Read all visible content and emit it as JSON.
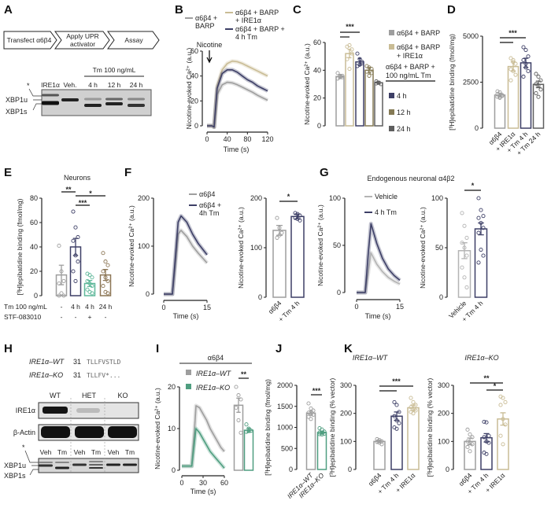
{
  "panel_labels": [
    "A",
    "B",
    "C",
    "D",
    "E",
    "F",
    "G",
    "H",
    "I",
    "J",
    "K"
  ],
  "colors": {
    "gray": "#9e9e9e",
    "tan": "#c9bc95",
    "navy": "#3d3f66",
    "olive": "#857a55",
    "dark": "#5e5e5e",
    "teal": "#5fb89a",
    "green": "#4f9e80",
    "brown": "#8c7655",
    "light": "#b4b4b4"
  },
  "panelA": {
    "flow": [
      [
        "Transfect α6β4"
      ],
      [
        "Apply UPR",
        "activator"
      ],
      [
        "Assay"
      ]
    ],
    "treatment": "Tm 100 ng/mL",
    "lanes": [
      "IRE1α",
      "Veh.",
      "4 h",
      "12 h",
      "24 h"
    ],
    "asterisk": "*",
    "bands": [
      "XBP1u",
      "XBP1s"
    ]
  },
  "panelH": {
    "sequences": [
      {
        "genotype": "IRE1α–WT",
        "position": "31",
        "sequence": "TLLFVSTLD"
      },
      {
        "genotype": "IRE1α–KO",
        "position": "31",
        "sequence": "TLLFV*..."
      }
    ],
    "genotypes": [
      "WT",
      "HET",
      "KO"
    ],
    "blots": [
      "IRE1α",
      "β-Actin"
    ],
    "treatments": [
      "Veh",
      "Tm",
      "Veh",
      "Tm",
      "Veh",
      "Tm"
    ],
    "asterisk": "*",
    "bands": [
      "XBP1u",
      "XBP1s"
    ]
  },
  "chart_data": [
    {
      "id": "B",
      "type": "line",
      "ylabel": "Nicotine-evoked Ca²⁺ (a.u.)",
      "xlabel": "Time (s)",
      "ylim": [
        0,
        60
      ],
      "xlim": [
        0,
        120
      ],
      "yticks": [
        0,
        20,
        40,
        60
      ],
      "xticks": [
        0,
        40,
        80,
        120
      ],
      "annotation": "Nicotine",
      "x": [
        0,
        10,
        14,
        20,
        30,
        40,
        50,
        60,
        70,
        80,
        90,
        100,
        110,
        120
      ],
      "series": [
        {
          "name": [
            "α6β4 +",
            "BARP"
          ],
          "color": "#9e9e9e",
          "y": [
            0,
            0,
            -1,
            25,
            33,
            35,
            34.5,
            33,
            31,
            29,
            27,
            24.5,
            22.5,
            20.5
          ]
        },
        {
          "name": [
            "α6β4 + BARP",
            "+ IRE1α"
          ],
          "color": "#c9bc95",
          "y": [
            0,
            0,
            -1,
            32,
            45,
            50,
            52,
            51.5,
            50,
            48,
            46,
            44,
            42,
            40
          ]
        },
        {
          "name": [
            "α6β4 + BARP +",
            "4 h Tm"
          ],
          "color": "#3d3f66",
          "y": [
            0,
            0,
            -1,
            30,
            42,
            45,
            45,
            43,
            40,
            37,
            35,
            32,
            30,
            28
          ]
        }
      ]
    },
    {
      "id": "C",
      "type": "bar",
      "ylabel": "Nicotine-evoked Ca²⁺ (a.u.)",
      "ylim": [
        0,
        60
      ],
      "yticks": [
        0,
        20,
        40,
        60
      ],
      "categories": [
        "α6β4 + BARP",
        "α6β4 + BARP + IRE1α",
        "4 h",
        "12 h",
        "24 h"
      ],
      "values": [
        35.5,
        52,
        46,
        40,
        31
      ],
      "sem": [
        1.5,
        3,
        2.5,
        2,
        1
      ],
      "points": [
        [
          38,
          36,
          35,
          34,
          35.5,
          36
        ],
        [
          57,
          58,
          55,
          48,
          41,
          52
        ],
        [
          52,
          48,
          45,
          43,
          44,
          46
        ],
        [
          43,
          42,
          41,
          39,
          36,
          38
        ],
        [
          32,
          31,
          30,
          30.5,
          31
        ]
      ],
      "colors": [
        "#9e9e9e",
        "#c9bc95",
        "#3d3f66",
        "#857a55",
        "#5e5e5e"
      ],
      "significance": [
        {
          "pair": [
            0,
            2
          ],
          "label": "***"
        },
        {
          "pair": [
            0,
            1
          ],
          "label": ""
        }
      ],
      "legend": [
        {
          "label": [
            "α6β4 + BARP"
          ],
          "color": "#9e9e9e"
        },
        {
          "label": [
            "α6β4 + BARP",
            "+ IRE1α"
          ],
          "color": "#c9bc95"
        },
        {
          "label": [
            "α6β4 + BARP +",
            "100 ng/mL Tm"
          ],
          "color": ""
        },
        {
          "label": [
            "4 h"
          ],
          "color": "#3d3f66"
        },
        {
          "label": [
            "12 h"
          ],
          "color": "#857a55"
        },
        {
          "label": [
            "24 h"
          ],
          "color": "#5e5e5e"
        }
      ]
    },
    {
      "id": "D",
      "type": "bar",
      "ylabel": "[³H]epibatidine binding (fmol/mg)",
      "ylim": [
        0,
        5000
      ],
      "yticks": [
        0,
        2500,
        5000
      ],
      "categories": [
        "α6β4",
        "+ IRE1α",
        "+ Tm 4 h",
        "+ Tm 24 h"
      ],
      "values": [
        1800,
        3350,
        3550,
        2380
      ],
      "sem": [
        100,
        250,
        250,
        180
      ],
      "points": [
        [
          2000,
          1950,
          1800,
          1700,
          1650,
          1750,
          1850,
          1700
        ],
        [
          3800,
          3700,
          3500,
          3200,
          3100,
          2900,
          2600,
          3600
        ],
        [
          4400,
          4250,
          3900,
          3700,
          3500,
          3100,
          2800,
          3300
        ],
        [
          2950,
          2800,
          2600,
          2400,
          2300,
          2100,
          1900,
          1700
        ]
      ],
      "colors": [
        "#9e9e9e",
        "#c9bc95",
        "#3d3f66",
        "#5e5e5e"
      ],
      "significance": [
        {
          "pair": [
            0,
            2
          ],
          "label": "***"
        },
        {
          "pair": [
            0,
            1
          ],
          "label": ""
        }
      ]
    },
    {
      "id": "E",
      "type": "bar",
      "title": "Neurons",
      "ylabel": "[³H]epibatidine binding (fmol/mg)",
      "ylim": [
        0,
        80
      ],
      "yticks": [
        0,
        20,
        40,
        60,
        80
      ],
      "values": [
        17,
        40,
        10,
        17
      ],
      "sem": [
        8,
        7,
        2.5,
        4.5
      ],
      "points": [
        [
          41,
          20,
          12,
          10,
          2,
          0,
          0
        ],
        [
          69,
          56,
          48,
          45,
          33,
          28,
          20,
          12
        ],
        [
          18,
          17,
          15,
          12,
          10,
          8,
          5,
          3,
          2
        ],
        [
          35,
          28,
          25,
          20,
          15,
          12,
          8,
          3,
          2
        ]
      ],
      "colors": [
        "#9e9e9e",
        "#3d3f66",
        "#5fb89a",
        "#8c7655"
      ],
      "rows": [
        {
          "label": "Tm 100 ng/mL",
          "values": [
            "-",
            "4 h",
            "4 h",
            "24 h"
          ]
        },
        {
          "label": "STF-083010",
          "values": [
            "-",
            "-",
            "+",
            "-"
          ]
        }
      ],
      "significance": [
        {
          "pair": [
            0,
            1
          ],
          "label": "**"
        },
        {
          "pair": [
            1,
            3
          ],
          "label": "*"
        },
        {
          "pair": [
            1,
            2
          ],
          "label": "***"
        }
      ]
    },
    {
      "id": "F-trace",
      "type": "line",
      "ylabel": "Nicotine-evoked Ca²⁺ (a.u.)",
      "xlabel": "Time (s)",
      "ylim": [
        0,
        200
      ],
      "xlim": [
        0,
        15
      ],
      "yticks": [
        0,
        100,
        200
      ],
      "xticks": [
        0,
        15
      ],
      "x": [
        0,
        2,
        3,
        4,
        5,
        6,
        8,
        10,
        12,
        15
      ],
      "series": [
        {
          "name": [
            "α6β4"
          ],
          "color": "#9e9e9e",
          "y": [
            0,
            0,
            0,
            60,
            125,
            133,
            120,
            100,
            85,
            65
          ]
        },
        {
          "name": [
            "α6β4 +",
            "4h Tm"
          ],
          "color": "#3d3f66",
          "y": [
            0,
            0,
            0,
            75,
            150,
            163,
            150,
            125,
            105,
            82
          ]
        }
      ]
    },
    {
      "id": "F-bar",
      "type": "bar",
      "ylabel": "Nicotine-evoked Ca²⁺ (a.u.)",
      "ylim": [
        0,
        200
      ],
      "yticks": [
        0,
        100,
        200
      ],
      "categories": [
        "α6β4",
        "+ Tm 4 h"
      ],
      "values": [
        135,
        163
      ],
      "sem": [
        10,
        5
      ],
      "points": [
        [
          160,
          140,
          130,
          120,
          125
        ],
        [
          170,
          168,
          165,
          160,
          158,
          155
        ]
      ],
      "colors": [
        "#9e9e9e",
        "#3d3f66"
      ],
      "significance": [
        {
          "pair": [
            0,
            1
          ],
          "label": "*"
        }
      ]
    },
    {
      "id": "G-trace",
      "type": "line",
      "title": "Endogenous neuronal α4β2",
      "ylabel": "Nicotine-evoked Ca²⁺ (a.u.)",
      "xlabel": "Time (s)",
      "ylim": [
        0,
        100
      ],
      "xlim": [
        0,
        15
      ],
      "yticks": [
        0,
        50,
        100
      ],
      "xticks": [
        0,
        15
      ],
      "x": [
        0,
        2,
        3,
        4,
        5,
        7,
        9,
        11,
        13,
        15
      ],
      "series": [
        {
          "name": [
            "Vehicle"
          ],
          "color": "#b4b4b4",
          "y": [
            0,
            0,
            0,
            20,
            42,
            30,
            22,
            16,
            12,
            9
          ]
        },
        {
          "name": [
            "4 h Tm"
          ],
          "color": "#3d3f66",
          "y": [
            0,
            0,
            0,
            40,
            73,
            52,
            36,
            25,
            18,
            13
          ]
        }
      ]
    },
    {
      "id": "G-bar",
      "type": "bar",
      "ylabel": "Nicotine-evoked Ca²⁺ (a.u.)",
      "ylim": [
        0,
        100
      ],
      "yticks": [
        0,
        50,
        100
      ],
      "categories": [
        "Vehicle",
        "+ Tm 4 h"
      ],
      "values": [
        47,
        69
      ],
      "sem": [
        8,
        6
      ],
      "points": [
        [
          85,
          72,
          60,
          55,
          50,
          42,
          30,
          20,
          10
        ],
        [
          100,
          88,
          82,
          80,
          75,
          70,
          65,
          48,
          42,
          35
        ]
      ],
      "colors": [
        "#b4b4b4",
        "#3d3f66"
      ],
      "significance": [
        {
          "pair": [
            0,
            1
          ],
          "label": "*"
        }
      ]
    },
    {
      "id": "I-trace",
      "type": "line",
      "title": "α6β4",
      "ylabel": "Nicotine-evoked Ca²⁺ (a.u.)",
      "xlabel": "Time (s)",
      "ylim": [
        0,
        20
      ],
      "xlim": [
        0,
        60
      ],
      "yticks": [
        0,
        10,
        20
      ],
      "xticks": [
        0,
        30,
        60
      ],
      "x": [
        0,
        10,
        14,
        18,
        20,
        25,
        30,
        35,
        40,
        45,
        50,
        55,
        60
      ],
      "series": [
        {
          "name": [
            "IRE1α–WT"
          ],
          "color": "#9e9e9e",
          "y": [
            1,
            1,
            1,
            10,
            15.5,
            15,
            13.5,
            12,
            10,
            8.5,
            7,
            5.5,
            4.5
          ]
        },
        {
          "name": [
            "IRE1α–KO"
          ],
          "color": "#4f9e80",
          "y": [
            1,
            1,
            1,
            7,
            10,
            9,
            7.5,
            6,
            4.5,
            3.5,
            2.5,
            1.5,
            0.5
          ]
        }
      ]
    },
    {
      "id": "I-bar",
      "type": "bar",
      "ylim": [
        0,
        20
      ],
      "values": [
        15.6,
        9.6
      ],
      "sem": [
        1.7,
        0.5
      ],
      "points": [
        [
          20,
          18,
          17,
          15,
          12,
          9
        ],
        [
          11,
          10,
          9.5,
          9.2,
          9.4
        ]
      ],
      "colors": [
        "#9e9e9e",
        "#4f9e80"
      ],
      "significance": [
        {
          "pair": [
            0,
            1
          ],
          "label": "**"
        }
      ]
    },
    {
      "id": "J",
      "type": "bar",
      "ylabel": "[³H]epibatidine binding (fmol/mg)",
      "ylim": [
        0,
        2000
      ],
      "yticks": [
        0,
        500,
        1000,
        1500,
        2000
      ],
      "categories": [
        "IRE1α–WT",
        "IRE1α–KO"
      ],
      "values": [
        1340,
        880
      ],
      "sem": [
        50,
        30
      ],
      "points": [
        [
          1570,
          1450,
          1400,
          1350,
          1320,
          1300,
          1250,
          1200
        ],
        [
          980,
          950,
          900,
          880,
          860,
          850,
          840,
          830
        ]
      ],
      "colors": [
        "#9e9e9e",
        "#4f9e80"
      ],
      "significance": [
        {
          "pair": [
            0,
            1
          ],
          "label": "***"
        }
      ]
    },
    {
      "id": "K-WT",
      "type": "bar",
      "title": "IRE1α–WT",
      "ylabel": "[³H]epibatidine binding (% vector)",
      "ylim": [
        0,
        300
      ],
      "yticks": [
        0,
        100,
        200,
        300
      ],
      "categories": [
        "α6β4",
        "+ Tm 4 h",
        "+ IRE1α"
      ],
      "values": [
        100,
        190,
        220
      ],
      "sem": [
        5,
        15,
        10
      ],
      "points": [
        [
          108,
          105,
          100,
          98,
          95,
          90
        ],
        [
          240,
          230,
          205,
          190,
          175,
          165,
          150,
          145
        ],
        [
          255,
          240,
          230,
          222,
          215,
          210,
          205,
          200
        ]
      ],
      "colors": [
        "#9e9e9e",
        "#3d3f66",
        "#c9bc95"
      ],
      "significance": [
        {
          "pair": [
            0,
            2
          ],
          "label": "***"
        },
        {
          "pair": [
            0,
            1
          ],
          "label": ""
        }
      ]
    },
    {
      "id": "K-KO",
      "type": "bar",
      "title": "IRE1α–KO",
      "ylabel": "[³H]epibatidine binding (% vector)",
      "ylim": [
        0,
        300
      ],
      "yticks": [
        0,
        100,
        200,
        300
      ],
      "categories": [
        "α6β4",
        "+ Tm 4 h",
        "+ IRE1α"
      ],
      "values": [
        100,
        113,
        180
      ],
      "sem": [
        12,
        15,
        22
      ],
      "points": [
        [
          142,
          125,
          115,
          100,
          95,
          90,
          80,
          65
        ],
        [
          170,
          168,
          120,
          115,
          100,
          95,
          60,
          55
        ],
        [
          260,
          255,
          240,
          230,
          180,
          160,
          120,
          90
        ]
      ],
      "colors": [
        "#9e9e9e",
        "#3d3f66",
        "#c9bc95"
      ],
      "significance": [
        {
          "pair": [
            0,
            2
          ],
          "label": "**"
        },
        {
          "pair": [
            1,
            2
          ],
          "label": "*"
        }
      ]
    }
  ]
}
